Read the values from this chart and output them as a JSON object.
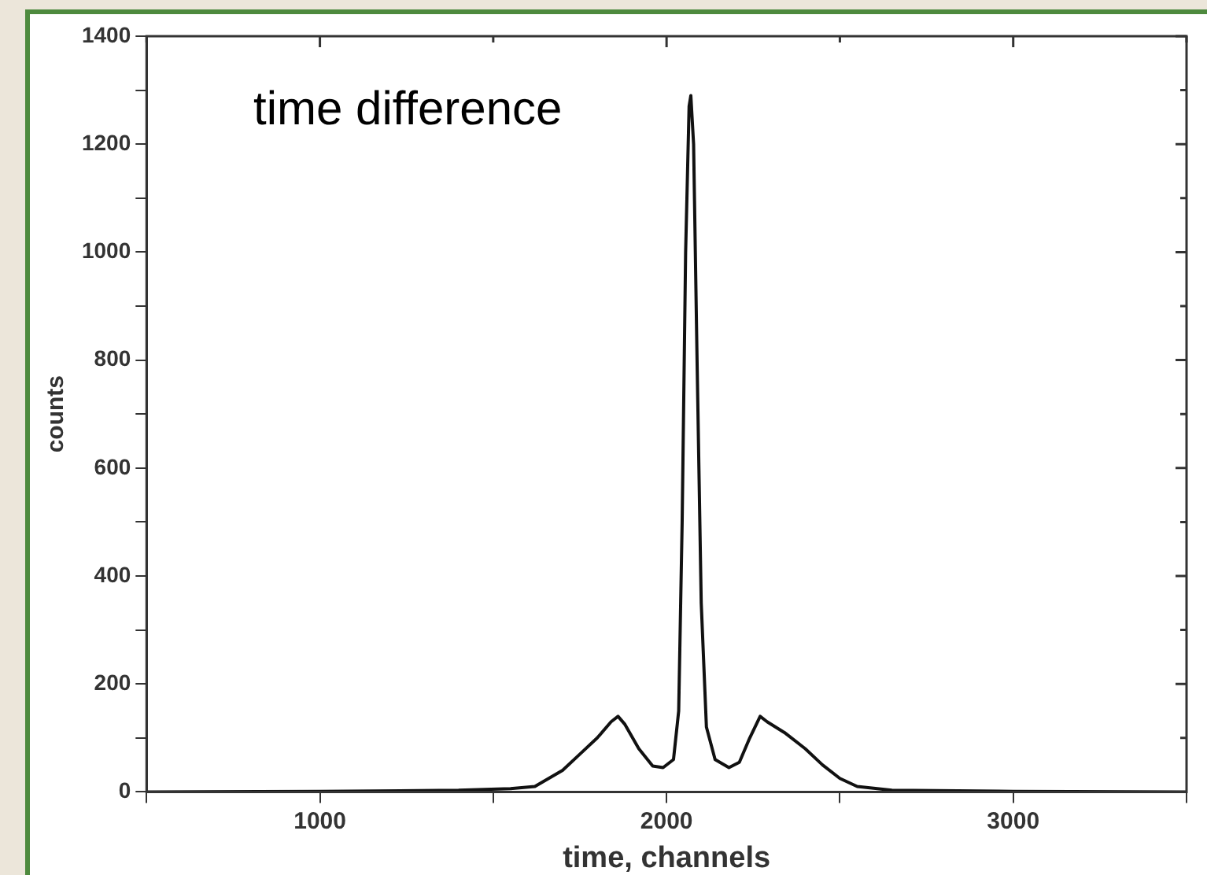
{
  "chart_data": {
    "type": "line",
    "xlabel": "time, channels",
    "ylabel": "counts",
    "annotations": [
      "time difference"
    ],
    "x": [
      500,
      1000,
      1400,
      1550,
      1620,
      1700,
      1750,
      1800,
      1840,
      1860,
      1880,
      1920,
      1960,
      1990,
      2020,
      2035,
      2045,
      2055,
      2065,
      2070,
      2078,
      2088,
      2100,
      2115,
      2140,
      2180,
      2210,
      2240,
      2270,
      2290,
      2340,
      2400,
      2450,
      2500,
      2550,
      2650,
      3000,
      3500
    ],
    "series": [
      {
        "color": "#111111",
        "values": [
          0,
          1,
          3,
          6,
          10,
          40,
          70,
          100,
          130,
          140,
          125,
          80,
          48,
          45,
          60,
          150,
          500,
          1000,
          1270,
          1290,
          1200,
          800,
          350,
          120,
          60,
          45,
          55,
          100,
          140,
          130,
          110,
          80,
          50,
          25,
          10,
          3,
          1,
          0
        ]
      }
    ],
    "xlim": [
      500,
      3500
    ],
    "ylim": [
      0,
      1400
    ],
    "xticks": [
      {
        "value": 500,
        "label": null
      },
      1000,
      {
        "value": 1500,
        "label": null
      },
      2000,
      {
        "value": 2500,
        "label": null
      },
      3000,
      {
        "value": 3500,
        "label": null
      }
    ],
    "yticks": [
      0,
      {
        "value": 100,
        "label": null
      },
      200,
      {
        "value": 300,
        "label": null
      },
      400,
      {
        "value": 500,
        "label": null
      },
      600,
      {
        "value": 700,
        "label": null
      },
      800,
      {
        "value": 900,
        "label": null
      },
      1000,
      {
        "value": 1100,
        "label": null
      },
      1200,
      {
        "value": 1300,
        "label": null
      },
      1400
    ],
    "grid": false,
    "legend": false,
    "marker": "none"
  }
}
